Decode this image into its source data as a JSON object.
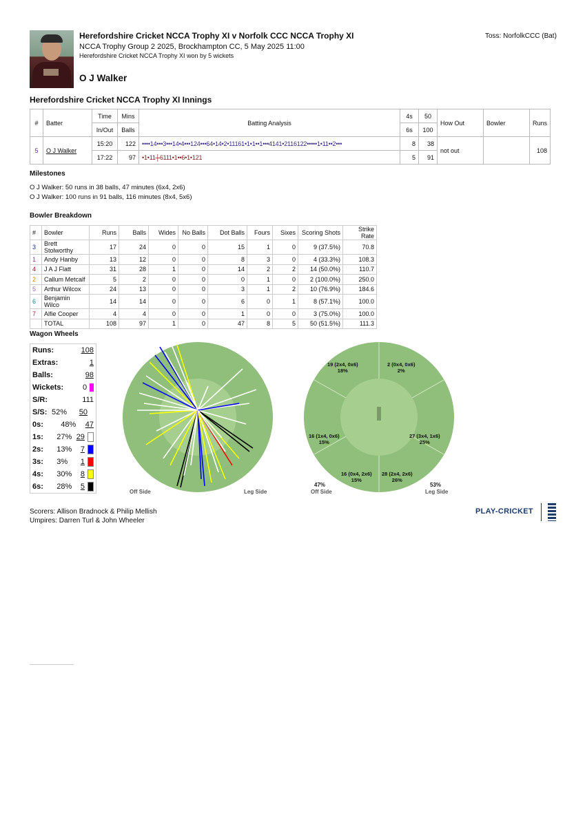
{
  "header": {
    "title": "Herefordshire Cricket NCCA Trophy XI v Norfolk CCC NCCA Trophy XI",
    "subtitle": "NCCA Trophy Group 2 2025, Brockhampton CC, 5 May 2025 11:00",
    "result": "Herefordshire Cricket NCCA Trophy XI won by 5 wickets",
    "toss": "Toss:  NorfolkCCC (Bat)",
    "player_name": "O J Walker"
  },
  "innings_title": "Herefordshire Cricket NCCA Trophy XI Innings",
  "batting_table": {
    "headers": {
      "num": "#",
      "batter": "Batter",
      "time": "Time",
      "mins": "Mins",
      "inout": "In/Out",
      "balls": "Balls",
      "analysis": "Batting Analysis",
      "fours": "4s",
      "sixes": "6s",
      "fifty": "50",
      "hundred": "100",
      "howout": "How Out",
      "bowler": "Bowler",
      "runs": "Runs"
    },
    "row": {
      "num": "5",
      "batter": "O J Walker",
      "time_in": "15:20",
      "time_out": "17:22",
      "mins": "122",
      "balls": "97",
      "analysis_1": "••••14•••3•••14•4•••124•••64•14•2•11161•1•1••1•••4141•2116122•••••1•11••2•••",
      "analysis_2": "•1•11┼6111•1••6•1•121",
      "fours": "8",
      "sixes": "5",
      "fifty": "38",
      "hundred": "91",
      "howout": "not out",
      "bowler": "",
      "runs": "108"
    }
  },
  "milestones": {
    "title": "Milestones",
    "items": [
      "O J Walker: 50 runs in 38 balls, 47 minutes (6x4, 2x6)",
      "O J Walker: 100 runs in 91 balls, 116 minutes (8x4, 5x6)"
    ]
  },
  "bowler_breakdown": {
    "title": "Bowler Breakdown",
    "headers": [
      "#",
      "Bowler",
      "Runs",
      "Balls",
      "Wides",
      "No Balls",
      "Dot Balls",
      "Fours",
      "Sixes",
      "Scoring Shots",
      "Strike Rate"
    ],
    "rows": [
      {
        "num": "3",
        "color": "#1a2f9c",
        "name": "Brett Stolworthy",
        "runs": "17",
        "balls": "24",
        "wides": "0",
        "nb": "0",
        "dots": "15",
        "fours": "1",
        "sixes": "0",
        "ss": "9 (37.5%)",
        "sr": "70.8"
      },
      {
        "num": "1",
        "color": "#b0229c",
        "name": "Andy Hanby",
        "runs": "13",
        "balls": "12",
        "wides": "0",
        "nb": "0",
        "dots": "8",
        "fours": "3",
        "sixes": "0",
        "ss": "4 (33.3%)",
        "sr": "108.3"
      },
      {
        "num": "4",
        "color": "#8a1a1a",
        "name": "J A J Flatt",
        "runs": "31",
        "balls": "28",
        "wides": "1",
        "nb": "0",
        "dots": "14",
        "fours": "2",
        "sixes": "2",
        "ss": "14 (50.0%)",
        "sr": "110.7"
      },
      {
        "num": "2",
        "color": "#d08a00",
        "name": "Callum Metcalf",
        "runs": "5",
        "balls": "2",
        "wides": "0",
        "nb": "0",
        "dots": "0",
        "fours": "1",
        "sixes": "0",
        "ss": "2 (100.0%)",
        "sr": "250.0"
      },
      {
        "num": "5",
        "color": "#9a6aa8",
        "name": "Arthur Wilcox",
        "runs": "24",
        "balls": "13",
        "wides": "0",
        "nb": "0",
        "dots": "3",
        "fours": "1",
        "sixes": "2",
        "ss": "10 (76.9%)",
        "sr": "184.6"
      },
      {
        "num": "6",
        "color": "#1a8a8a",
        "name": "Benjamin Wilco",
        "runs": "14",
        "balls": "14",
        "wides": "0",
        "nb": "0",
        "dots": "6",
        "fours": "0",
        "sixes": "1",
        "ss": "8 (57.1%)",
        "sr": "100.0"
      },
      {
        "num": "7",
        "color": "#a0224a",
        "name": "Alfie Cooper",
        "runs": "4",
        "balls": "4",
        "wides": "0",
        "nb": "0",
        "dots": "1",
        "fours": "0",
        "sixes": "0",
        "ss": "3 (75.0%)",
        "sr": "100.0"
      }
    ],
    "total": {
      "label": "TOTAL",
      "runs": "108",
      "balls": "97",
      "wides": "1",
      "nb": "0",
      "dots": "47",
      "fours": "8",
      "sixes": "5",
      "ss": "50 (51.5%)",
      "sr": "111.3"
    }
  },
  "wagon_wheels": {
    "title": "Wagon Wheels",
    "summary": [
      {
        "k": "Runs:",
        "p": "",
        "v": "108",
        "color": ""
      },
      {
        "k": "Extras:",
        "p": "",
        "v": "1",
        "color": ""
      },
      {
        "k": "Balls:",
        "p": "",
        "v": "98",
        "color": ""
      },
      {
        "k": "Wickets:",
        "p": "",
        "v": "0",
        "color": "#ff00ff"
      },
      {
        "k": "S/R:",
        "p": "",
        "v": "111",
        "color": ""
      },
      {
        "k": "S/S:",
        "p": "52%",
        "v": "50",
        "color": ""
      },
      {
        "k": "0s:",
        "p": "48%",
        "v": "47",
        "color": ""
      },
      {
        "k": "1s:",
        "p": "27%",
        "v": "29",
        "color": "#ffffff"
      },
      {
        "k": "2s:",
        "p": "13%",
        "v": "7",
        "color": "#0000ff"
      },
      {
        "k": "3s:",
        "p": "3%",
        "v": "1",
        "color": "#ff0000"
      },
      {
        "k": "4s:",
        "p": "30%",
        "v": "8",
        "color": "#ffff00"
      },
      {
        "k": "6s:",
        "p": "28%",
        "v": "5",
        "color": "#000000"
      }
    ],
    "off_side": "Off Side",
    "leg_side": "Leg Side",
    "zones": [
      {
        "t1": "19 (2x4, 0x6)",
        "t2": "18%"
      },
      {
        "t1": "2 (0x4, 0x6)",
        "t2": "2%"
      },
      {
        "t1": "16 (1x4, 0x6)",
        "t2": "15%"
      },
      {
        "t1": "27 (3x4, 1x6)",
        "t2": "25%"
      },
      {
        "t1": "16 (0x4, 2x6)",
        "t2": "15%"
      },
      {
        "t1": "28 (2x4, 2x6)",
        "t2": "26%"
      }
    ],
    "off_pct": "47%",
    "leg_pct": "53%"
  },
  "footer": {
    "scorers": "Scorers:  Allison Bradnock & Philip Mellish",
    "umpires": "Umpires:  Darren Turl & John Wheeler",
    "brand": "PLAY-CRICKET"
  }
}
